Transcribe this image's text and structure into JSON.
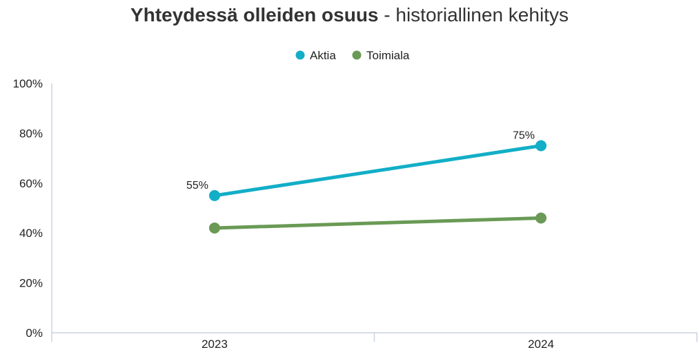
{
  "chart_data": {
    "type": "line",
    "title_bold": "Yhteydessä olleiden osuus",
    "title_rest": " - historiallinen kehitys",
    "categories": [
      "2023",
      "2024"
    ],
    "y_ticks": [
      "0%",
      "20%",
      "40%",
      "60%",
      "80%",
      "100%"
    ],
    "ylim": [
      0,
      100
    ],
    "legend_position": "top-center",
    "grid": false,
    "series": [
      {
        "name": "Aktia",
        "color": "#12aec7",
        "values": [
          55,
          75
        ],
        "labels": [
          "55%",
          "75%"
        ]
      },
      {
        "name": "Toimiala",
        "color": "#6a9a55",
        "values": [
          42,
          46
        ],
        "labels": [
          "",
          ""
        ]
      }
    ]
  }
}
